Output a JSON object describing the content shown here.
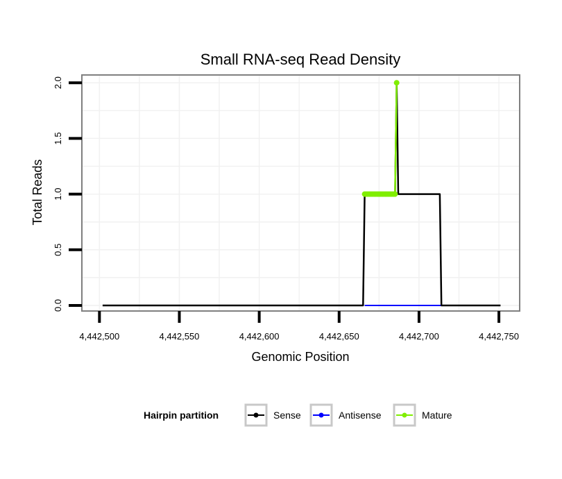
{
  "chart_data": {
    "type": "line",
    "title": "Small RNA-seq Read Density",
    "xlabel": "Genomic Position",
    "ylabel": "Total Reads",
    "xlim": [
      4442489,
      4442763
    ],
    "ylim": [
      -0.05,
      2.07
    ],
    "x_ticks": [
      4442500,
      4442550,
      4442600,
      4442650,
      4442700,
      4442750
    ],
    "x_tick_labels": [
      "4,442,500",
      "4,442,550",
      "4,442,600",
      "4,442,650",
      "4,442,700",
      "4,442,750"
    ],
    "y_ticks": [
      0.0,
      0.5,
      1.0,
      1.5,
      2.0
    ],
    "y_tick_labels": [
      "0.0",
      "0.5",
      "1.0",
      "1.5",
      "2.0"
    ],
    "grid": true,
    "legend": {
      "title": "Hairpin partition",
      "position": "bottom",
      "entries": [
        "Sense",
        "Antisense",
        "Mature"
      ]
    },
    "series": [
      {
        "name": "Sense",
        "color": "#000000",
        "points": [
          [
            4442502,
            0
          ],
          [
            4442665,
            0
          ],
          [
            4442666,
            1
          ],
          [
            4442685,
            1
          ],
          [
            4442686,
            2
          ],
          [
            4442687,
            1
          ],
          [
            4442713,
            1
          ],
          [
            4442714,
            0
          ],
          [
            4442751,
            0
          ]
        ]
      },
      {
        "name": "Antisense",
        "color": "#0000ff",
        "points": [
          [
            4442666,
            0
          ],
          [
            4442714,
            0
          ]
        ]
      },
      {
        "name": "Mature",
        "color": "#80ee00",
        "points": [
          [
            4442666,
            1
          ],
          [
            4442667,
            1
          ],
          [
            4442668,
            1
          ],
          [
            4442669,
            1
          ],
          [
            4442670,
            1
          ],
          [
            4442671,
            1
          ],
          [
            4442672,
            1
          ],
          [
            4442673,
            1
          ],
          [
            4442674,
            1
          ],
          [
            4442675,
            1
          ],
          [
            4442676,
            1
          ],
          [
            4442677,
            1
          ],
          [
            4442678,
            1
          ],
          [
            4442679,
            1
          ],
          [
            4442680,
            1
          ],
          [
            4442681,
            1
          ],
          [
            4442682,
            1
          ],
          [
            4442683,
            1
          ],
          [
            4442684,
            1
          ],
          [
            4442685,
            1
          ],
          [
            4442686,
            2
          ]
        ]
      }
    ]
  }
}
